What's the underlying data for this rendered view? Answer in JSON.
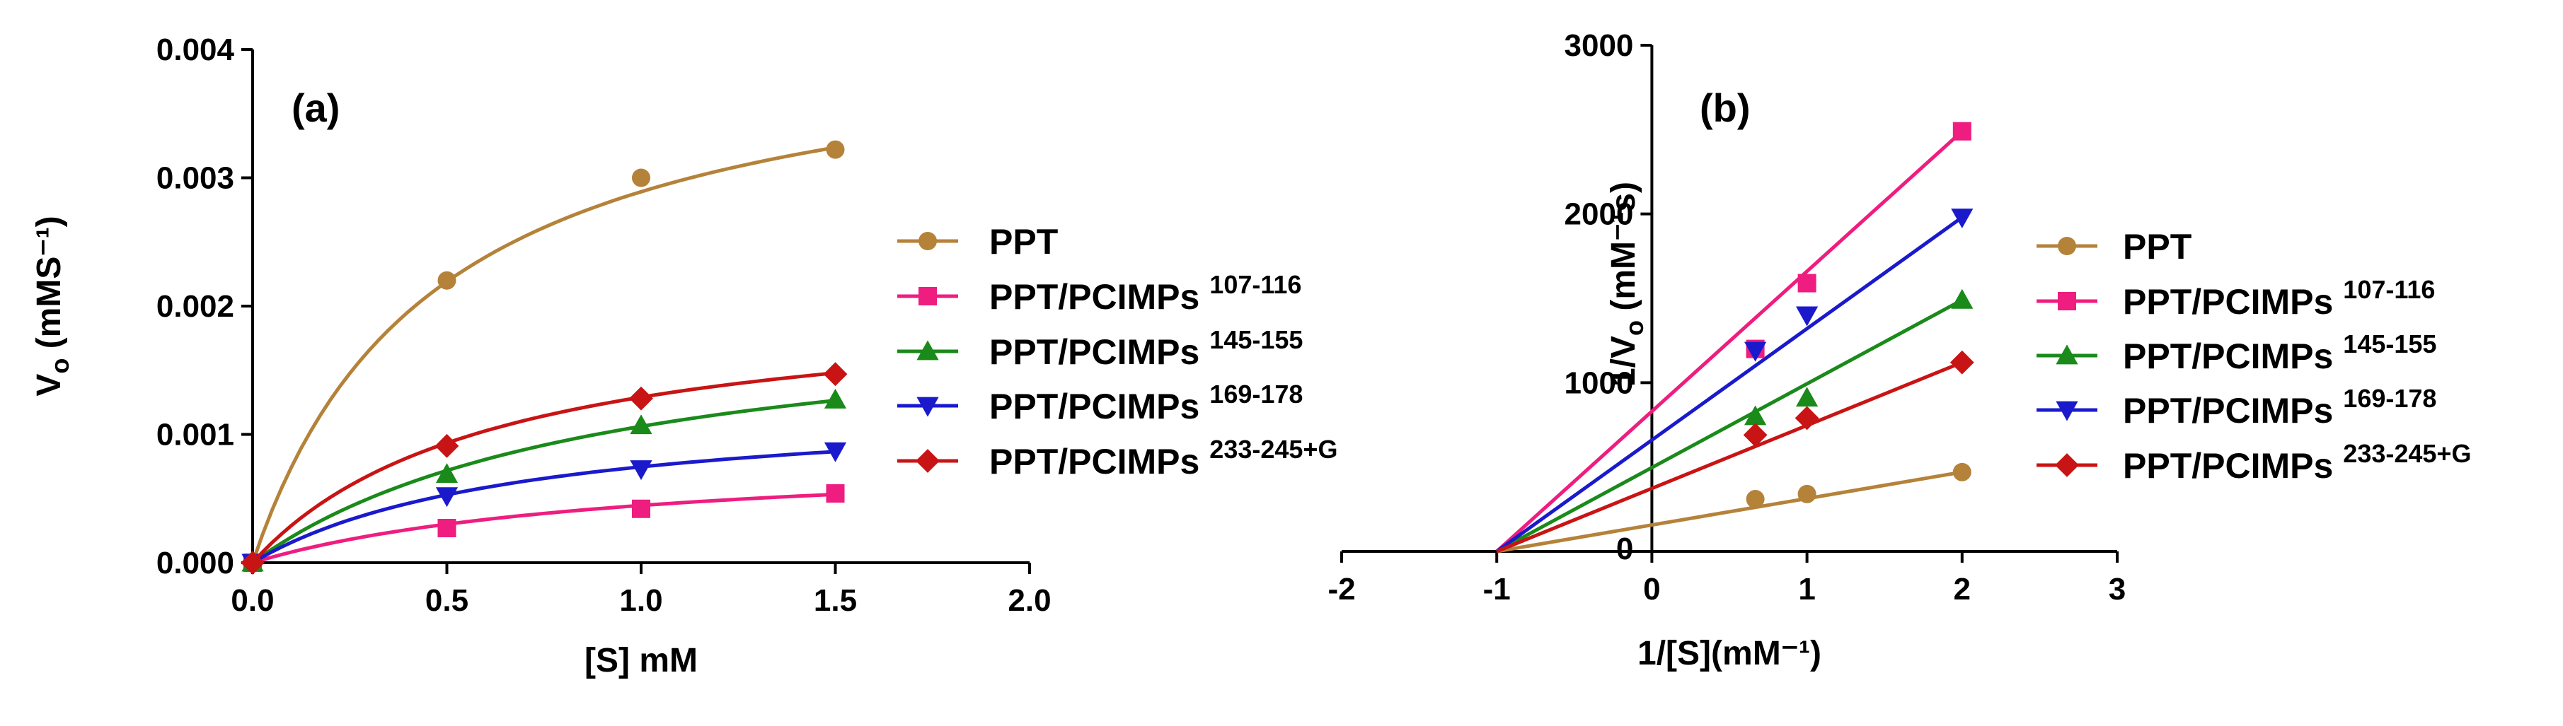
{
  "chart_data": [
    {
      "type": "line",
      "panel_label": "(a)",
      "xlabel": "[S] mM",
      "ylabel_main": "V",
      "ylabel_sub": "o",
      "ylabel_unit": " (mMS⁻¹)",
      "xlim": [
        0,
        2.0
      ],
      "ylim": [
        0,
        0.004
      ],
      "xticks": [
        "0.0",
        "0.5",
        "1.0",
        "1.5",
        "2.0"
      ],
      "yticks": [
        "0.000",
        "0.001",
        "0.002",
        "0.003",
        "0.004"
      ],
      "x": [
        0,
        0.5,
        1.0,
        1.5
      ],
      "series": [
        {
          "name": "PPT",
          "sup": "",
          "color": "#b5823a",
          "marker": "circle",
          "values": [
            0,
            0.0022,
            0.003,
            0.00322
          ],
          "fit": {
            "vmax": 0.00425,
            "km": 0.47
          }
        },
        {
          "name": "PPT/PCIMPs",
          "sup": "107-116",
          "color": "#ee1d7f",
          "marker": "square",
          "values": [
            0,
            0.00027,
            0.00042,
            0.00054
          ],
          "fit": {
            "vmax": 0.00087,
            "km": 0.95
          }
        },
        {
          "name": "PPT/PCIMPs",
          "sup": "145-155",
          "color": "#1a8a1a",
          "marker": "triangle-up",
          "values": [
            0,
            0.00069,
            0.00107,
            0.00127
          ],
          "fit": {
            "vmax": 0.00204,
            "km": 0.92
          }
        },
        {
          "name": "PPT/PCIMPs",
          "sup": "169-178",
          "color": "#1a1acc",
          "marker": "triangle-down",
          "values": [
            0,
            0.00052,
            0.00073,
            0.00087
          ],
          "fit": {
            "vmax": 0.00127,
            "km": 0.7
          }
        },
        {
          "name": "PPT/PCIMPs",
          "sup": "233-245+G",
          "color": "#c81414",
          "marker": "diamond",
          "values": [
            0,
            0.00091,
            0.00128,
            0.00147
          ],
          "fit": {
            "vmax": 0.00209,
            "km": 0.62
          }
        }
      ]
    },
    {
      "type": "scatter",
      "panel_label": "(b)",
      "xlabel": "1/[S](mM⁻¹)",
      "ylabel_main": "1/V",
      "ylabel_sub": "o",
      "ylabel_unit": " (mM⁻¹s)",
      "xlim": [
        -2,
        3
      ],
      "ylim": [
        0,
        3000
      ],
      "xticks": [
        "-2",
        "-1",
        "0",
        "1",
        "2",
        "3"
      ],
      "yticks": [
        "0",
        "1000",
        "2000",
        "3000"
      ],
      "series": [
        {
          "name": "PPT",
          "sup": "",
          "color": "#b5823a",
          "marker": "circle",
          "x": [
            0.667,
            1.0,
            2.0
          ],
          "values": [
            310,
            340,
            470
          ],
          "line": [
            [
              -1.0,
              0
            ],
            [
              2.0,
              470
            ]
          ]
        },
        {
          "name": "PPT/PCIMPs",
          "sup": "107-116",
          "color": "#ee1d7f",
          "marker": "square",
          "x": [
            0.667,
            1.0,
            2.0
          ],
          "values": [
            1200,
            1590,
            2490
          ],
          "line": [
            [
              -1.0,
              0
            ],
            [
              2.0,
              2490
            ]
          ]
        },
        {
          "name": "PPT/PCIMPs",
          "sup": "145-155",
          "color": "#1a8a1a",
          "marker": "triangle-up",
          "x": [
            0.667,
            1.0,
            2.0
          ],
          "values": [
            800,
            910,
            1490
          ],
          "line": [
            [
              -1.0,
              0
            ],
            [
              2.0,
              1490
            ]
          ]
        },
        {
          "name": "PPT/PCIMPs",
          "sup": "169-178",
          "color": "#1a1acc",
          "marker": "triangle-down",
          "x": [
            0.667,
            1.0,
            2.0
          ],
          "values": [
            1190,
            1400,
            1980
          ],
          "line": [
            [
              -1.0,
              0
            ],
            [
              2.0,
              1980
            ]
          ]
        },
        {
          "name": "PPT/PCIMPs",
          "sup": "233-245+G",
          "color": "#c81414",
          "marker": "diamond",
          "x": [
            0.667,
            1.0,
            2.0
          ],
          "values": [
            690,
            790,
            1120
          ],
          "line": [
            [
              -1.0,
              0
            ],
            [
              2.0,
              1120
            ]
          ]
        }
      ]
    }
  ]
}
